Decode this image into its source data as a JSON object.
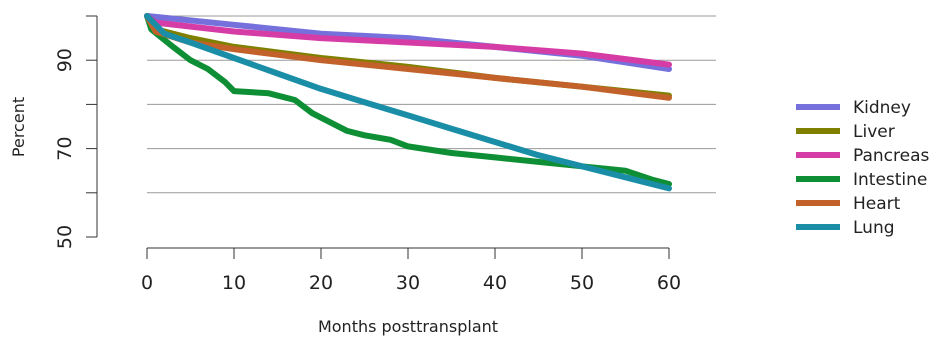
{
  "chart_data": {
    "type": "line",
    "title": "",
    "xlabel": "Months posttransplant",
    "ylabel": "Percent",
    "xlim": [
      0,
      60
    ],
    "ylim": [
      50,
      100
    ],
    "x_ticks": [
      0,
      10,
      20,
      30,
      40,
      50,
      60
    ],
    "y_tick_labels": [
      50,
      70,
      90
    ],
    "y_tick_marks": [
      50,
      60,
      70,
      80,
      90,
      100
    ],
    "grid": "horizontal lines at 60, 70, 80, 90, 100",
    "legend_position": "right",
    "series": [
      {
        "name": "Kidney",
        "color": "#7570db",
        "x": [
          0,
          10,
          20,
          30,
          40,
          50,
          60
        ],
        "y": [
          100,
          98,
          96,
          95,
          93,
          91,
          88
        ]
      },
      {
        "name": "Liver",
        "color": "#808000",
        "x": [
          0,
          1,
          5,
          10,
          20,
          30,
          40,
          50,
          60
        ],
        "y": [
          100,
          97,
          95,
          93,
          90.5,
          88.5,
          86,
          84,
          82
        ]
      },
      {
        "name": "Pancreas",
        "color": "#d63ca6",
        "x": [
          0,
          1,
          10,
          20,
          30,
          40,
          50,
          60
        ],
        "y": [
          100,
          98.5,
          96.5,
          95,
          94,
          93,
          91.5,
          89
        ]
      },
      {
        "name": "Intestine",
        "color": "#0f8f35",
        "x": [
          0,
          0.5,
          3,
          5,
          7,
          9,
          10,
          14,
          17,
          19,
          21,
          23,
          25,
          28,
          30,
          35,
          40,
          45,
          50,
          55,
          58,
          60
        ],
        "y": [
          100,
          97,
          93,
          90,
          88,
          85,
          83,
          82.5,
          81,
          78,
          76,
          74,
          73,
          72,
          70.5,
          69,
          68,
          67,
          66,
          65,
          63,
          62
        ]
      },
      {
        "name": "Heart",
        "color": "#c2622a",
        "x": [
          0,
          1,
          5,
          10,
          20,
          30,
          40,
          50,
          60
        ],
        "y": [
          100,
          96.5,
          94,
          92.5,
          90,
          88,
          86,
          84,
          81.5
        ]
      },
      {
        "name": "Lung",
        "color": "#1a8ea6",
        "x": [
          0,
          2,
          5,
          10,
          15,
          20,
          25,
          30,
          35,
          40,
          45,
          50,
          55,
          60
        ],
        "y": [
          100,
          96,
          94,
          90.5,
          87,
          83.5,
          80.5,
          77.5,
          74.5,
          71.5,
          68.5,
          66,
          63.5,
          61
        ]
      }
    ]
  }
}
